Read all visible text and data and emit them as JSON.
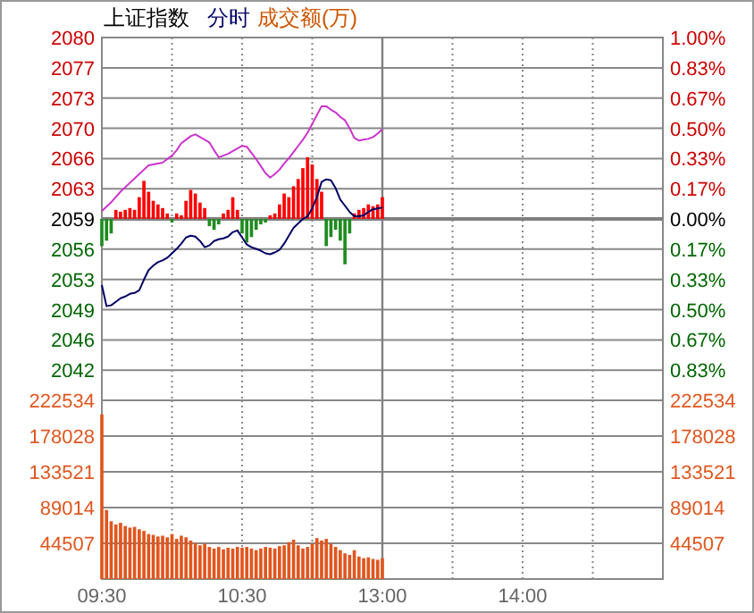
{
  "chart_data": [
    {
      "type": "line",
      "title": "上证指数",
      "annotations": [
        "分时",
        "成交额(万)"
      ],
      "categories": [
        "09:30",
        null,
        null,
        null,
        null,
        null,
        null,
        null,
        null,
        null,
        null,
        null,
        null,
        null,
        null,
        null,
        null,
        null,
        null,
        null,
        null,
        null,
        null,
        null,
        null,
        null,
        null,
        null,
        null,
        null,
        "10:30",
        null,
        null,
        null,
        null,
        null,
        null,
        null,
        null,
        null,
        null,
        null,
        null,
        null,
        null,
        null,
        null,
        null,
        null,
        null,
        null,
        null,
        null,
        null,
        null,
        null,
        null,
        null,
        null,
        null,
        "13:00",
        null,
        null,
        null,
        null,
        null,
        null,
        null,
        null,
        null,
        null,
        null,
        null,
        null,
        null,
        null,
        null,
        null,
        null,
        null,
        null,
        null,
        null,
        null,
        null,
        null,
        null,
        null,
        null,
        null,
        "14:00",
        null,
        null,
        null,
        null,
        null,
        null,
        null,
        null,
        null,
        null,
        null,
        null,
        null,
        null,
        null,
        null,
        null,
        null,
        null,
        null,
        null,
        null,
        null,
        null,
        null,
        null,
        null,
        null,
        null,
        null
      ],
      "ylim": [
        2038.81,
        2080
      ],
      "yticks": [
        2080,
        {
          "value": 2076.56,
          "label": "2077"
        },
        {
          "value": 2073.13,
          "label": "2073"
        },
        {
          "value": 2069.7,
          "label": "2070"
        },
        {
          "value": 2066.26,
          "label": "2066"
        },
        {
          "value": 2062.83,
          "label": "2063"
        },
        {
          "value": 2059.4,
          "label": "2059"
        },
        {
          "value": 2055.97,
          "label": "2056"
        },
        {
          "value": 2052.54,
          "label": "2053"
        },
        {
          "value": 2049.1,
          "label": "2049"
        },
        {
          "value": 2045.67,
          "label": "2046"
        },
        {
          "value": 2042.24,
          "label": "2042"
        }
      ],
      "y2lim": [
        -1,
        1
      ],
      "y2ticks": [
        {
          "value": 1,
          "label": "1.00%"
        },
        {
          "value": 0.8333,
          "label": "0.83%"
        },
        {
          "value": 0.6667,
          "label": "0.67%"
        },
        {
          "value": 0.5,
          "label": "0.50%"
        },
        {
          "value": 0.3333,
          "label": "0.33%"
        },
        {
          "value": 0.1667,
          "label": "0.17%"
        },
        {
          "value": 0,
          "label": "0.00%"
        },
        {
          "value": -0.1667,
          "label": "0.17%"
        },
        {
          "value": -0.3333,
          "label": "0.33%"
        },
        {
          "value": -0.5,
          "label": "0.50%"
        },
        {
          "value": -0.6667,
          "label": "0.67%"
        },
        {
          "value": -0.8333,
          "label": "0.83%"
        }
      ],
      "grid": true,
      "tick_labels": "y",
      "ref_lines": [
        {
          "axis": "y2",
          "value": 0,
          "color": "#808080"
        },
        {
          "axis": "x",
          "value": "13:00",
          "color": "#808080"
        }
      ],
      "series": [
        {
          "type": "bar",
          "axis": "y2",
          "color": "#ff0000",
          "values": [
            null,
            null,
            null,
            0.05,
            0.04,
            0.05,
            0.06,
            0.05,
            0.12,
            0.21,
            0.15,
            0.1,
            0.08,
            0.06,
            0.03,
            null,
            0.03,
            0.02,
            0.1,
            0.16,
            0.14,
            0.09,
            0.06,
            null,
            null,
            null,
            0.03,
            0.05,
            0.12,
            0.05,
            null,
            null,
            null,
            null,
            null,
            null,
            0.02,
            0.03,
            0.08,
            0.14,
            0.12,
            0.18,
            0.22,
            0.28,
            0.34,
            0.3,
            0.22,
            0.15,
            null,
            null,
            null,
            null,
            null,
            null,
            0.03,
            0.05,
            0.06,
            0.08,
            0.07,
            0.08,
            0.12,
            null,
            null,
            null,
            null,
            null,
            null,
            null,
            null,
            null,
            null,
            null,
            null,
            null,
            null,
            null,
            null,
            null,
            null,
            null,
            null,
            null,
            null,
            null,
            null,
            null,
            null,
            null,
            null,
            null,
            null,
            null,
            null,
            null,
            null,
            null,
            null,
            null,
            null,
            null,
            null,
            null,
            null,
            null,
            null,
            null,
            null,
            null,
            null,
            null,
            null,
            null,
            null,
            null,
            null,
            null,
            null,
            null,
            null,
            null,
            null
          ]
        },
        {
          "type": "bar",
          "axis": "y2",
          "color": "#1e8c1e",
          "values": [
            -0.15,
            -0.12,
            -0.08,
            null,
            null,
            null,
            null,
            null,
            null,
            null,
            null,
            null,
            null,
            null,
            null,
            -0.02,
            null,
            null,
            null,
            null,
            null,
            null,
            null,
            -0.04,
            -0.06,
            -0.03,
            null,
            null,
            null,
            null,
            -0.08,
            -0.13,
            -0.1,
            -0.06,
            -0.03,
            -0.02,
            null,
            null,
            null,
            null,
            null,
            null,
            null,
            null,
            null,
            null,
            null,
            null,
            -0.15,
            -0.1,
            -0.06,
            -0.12,
            -0.25,
            -0.08,
            null,
            null,
            null,
            null,
            null,
            null,
            null,
            null,
            null,
            null,
            null,
            null,
            null,
            null,
            null,
            null,
            null,
            null,
            null,
            null,
            null,
            null,
            null,
            null,
            null,
            null,
            null,
            null,
            null,
            null,
            null,
            null,
            null,
            null,
            null,
            null,
            null,
            null,
            null,
            null,
            null,
            null,
            null,
            null,
            null,
            null,
            null,
            null,
            null,
            null,
            null,
            null,
            null,
            null,
            null,
            null,
            null,
            null,
            null,
            null,
            null,
            null,
            null,
            null,
            null,
            null,
            null
          ]
        },
        {
          "color": "#cc33cc",
          "values": [
            2060.3,
            2060.8,
            2061.3,
            2061.9,
            2062.5,
            2063.0,
            2063.5,
            2064.0,
            2064.5,
            2065.0,
            2065.5,
            2065.6,
            2065.7,
            2065.8,
            2066.2,
            2066.6,
            2067.2,
            2068.0,
            2068.4,
            2068.8,
            2069.0,
            2068.7,
            2068.4,
            2068.1,
            2067.2,
            2066.4,
            2066.6,
            2066.8,
            2067.1,
            2067.4,
            2067.7,
            2067.6,
            2066.9,
            2066.2,
            2065.4,
            2064.6,
            2064.1,
            2064.5,
            2065.0,
            2065.7,
            2066.3,
            2067.0,
            2067.7,
            2068.4,
            2069.2,
            2070.2,
            2071.2,
            2072.2,
            2072.2,
            2071.8,
            2071.5,
            2071.0,
            2070.6,
            2069.7,
            2068.6,
            2068.3,
            2068.4,
            2068.5,
            2068.7,
            2069.1,
            2069.6,
            null,
            null,
            null,
            null,
            null,
            null,
            null,
            null,
            null,
            null,
            null,
            null,
            null,
            null,
            null,
            null,
            null,
            null,
            null,
            null,
            null,
            null,
            null,
            null,
            null,
            null,
            null,
            null,
            null,
            null,
            null,
            null,
            null,
            null,
            null,
            null,
            null,
            null,
            null,
            null,
            null,
            null,
            null,
            null,
            null,
            null,
            null,
            null,
            null,
            null,
            null,
            null,
            null,
            null,
            null,
            null,
            null,
            null,
            null,
            null
          ]
        },
        {
          "color": "#000066",
          "values": [
            2051.9,
            2049.5,
            2049.6,
            2050.0,
            2050.4,
            2050.6,
            2050.9,
            2051.0,
            2051.3,
            2052.5,
            2053.6,
            2054.1,
            2054.5,
            2054.7,
            2055.0,
            2055.5,
            2056.0,
            2056.6,
            2057.3,
            2057.5,
            2057.4,
            2056.9,
            2056.2,
            2056.4,
            2056.9,
            2057.1,
            2057.2,
            2057.4,
            2057.9,
            2058.1,
            2057.3,
            2056.5,
            2056.2,
            2056.0,
            2055.8,
            2055.5,
            2055.4,
            2055.6,
            2055.9,
            2056.6,
            2057.5,
            2058.4,
            2058.9,
            2059.4,
            2059.7,
            2060.6,
            2061.9,
            2063.6,
            2063.9,
            2063.8,
            2062.9,
            2061.6,
            2060.9,
            2060.2,
            2059.7,
            2059.7,
            2059.8,
            2060.2,
            2060.5,
            2060.6,
            2060.7,
            null,
            null,
            null,
            null,
            null,
            null,
            null,
            null,
            null,
            null,
            null,
            null,
            null,
            null,
            null,
            null,
            null,
            null,
            null,
            null,
            null,
            null,
            null,
            null,
            null,
            null,
            null,
            null,
            null,
            null,
            null,
            null,
            null,
            null,
            null,
            null,
            null,
            null,
            null,
            null,
            null,
            null,
            null,
            null,
            null,
            null,
            null,
            null,
            null,
            null,
            null,
            null,
            null,
            null,
            null,
            null,
            null,
            null,
            null,
            null
          ]
        }
      ]
    },
    {
      "type": "bar",
      "color": "#e0561e",
      "categories": [
        "09:30",
        null,
        null,
        null,
        null,
        null,
        null,
        null,
        null,
        null,
        null,
        null,
        null,
        null,
        null,
        null,
        null,
        null,
        null,
        null,
        null,
        null,
        null,
        null,
        null,
        null,
        null,
        null,
        null,
        null,
        "10:30",
        null,
        null,
        null,
        null,
        null,
        null,
        null,
        null,
        null,
        null,
        null,
        null,
        null,
        null,
        null,
        null,
        null,
        null,
        null,
        null,
        null,
        null,
        null,
        null,
        null,
        null,
        null,
        null,
        null,
        "13:00",
        null,
        null,
        null,
        null,
        null,
        null,
        null,
        null,
        null,
        null,
        null,
        null,
        null,
        null,
        null,
        null,
        null,
        null,
        null,
        null,
        null,
        null,
        null,
        null,
        null,
        null,
        null,
        null,
        null,
        "14:00",
        null,
        null,
        null,
        null,
        null,
        null,
        null,
        null,
        null,
        null,
        null,
        null,
        null,
        null,
        null,
        null,
        null,
        null,
        null,
        null,
        null,
        null,
        null,
        null,
        null,
        null,
        null,
        null,
        null,
        null
      ],
      "values": [
        205000,
        86000,
        72000,
        68000,
        70000,
        66000,
        64000,
        65000,
        62000,
        60000,
        56000,
        55000,
        53000,
        54000,
        52000,
        56000,
        50000,
        54000,
        52000,
        48000,
        45000,
        42000,
        44000,
        40000,
        38000,
        40000,
        37000,
        39000,
        38000,
        40000,
        39000,
        40000,
        38000,
        36000,
        38000,
        40000,
        39000,
        38000,
        41000,
        42000,
        46000,
        49000,
        42000,
        38000,
        40000,
        44000,
        51000,
        48000,
        50000,
        44000,
        40000,
        36000,
        32000,
        30000,
        36000,
        28000,
        26000,
        27000,
        25000,
        24000,
        26000,
        null,
        null,
        null,
        null,
        null,
        null,
        null,
        null,
        null,
        null,
        null,
        null,
        null,
        null,
        null,
        null,
        null,
        null,
        null,
        null,
        null,
        null,
        null,
        null,
        null,
        null,
        null,
        null,
        null,
        null,
        null,
        null,
        null,
        null,
        null,
        null,
        null,
        null,
        null,
        null,
        null,
        null,
        null,
        null,
        null,
        null,
        null,
        null,
        null,
        null,
        null,
        null,
        null,
        null,
        null,
        null,
        null,
        null,
        null,
        null
      ],
      "ylim": [
        0,
        222534
      ],
      "yticks": [
        44507,
        89014,
        133521,
        178028,
        222534
      ],
      "y2lim": [
        0,
        222534
      ],
      "y2ticks": [
        44507,
        89014,
        133521,
        178028,
        222534
      ],
      "grid": true,
      "ref_lines": [
        {
          "axis": "x",
          "value": "13:00",
          "color": "#808080"
        }
      ]
    }
  ]
}
